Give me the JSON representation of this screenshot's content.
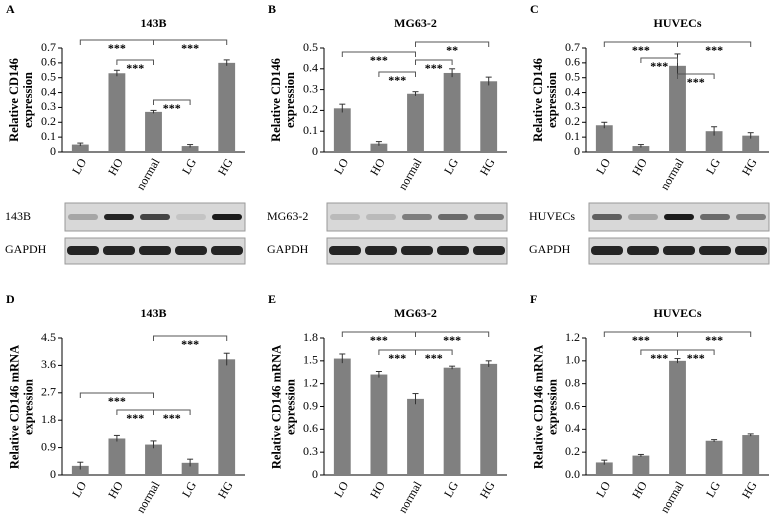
{
  "chart_data": [
    {
      "type": "bar",
      "panel": "A",
      "title": "143B",
      "ylabel": "Relative CD146 expression",
      "categories": [
        "LO",
        "HO",
        "normal",
        "LG",
        "HG"
      ],
      "values": [
        0.05,
        0.53,
        0.27,
        0.04,
        0.6
      ],
      "errors": [
        0.01,
        0.02,
        0.01,
        0.01,
        0.02
      ],
      "color": "#808080",
      "ylim": [
        0,
        0.7
      ],
      "yticks": [
        0,
        0.1,
        0.2,
        0.3,
        0.4,
        0.5,
        0.6,
        0.7
      ],
      "annotations": [
        "***",
        "***",
        "***",
        "***"
      ]
    },
    {
      "type": "bar",
      "panel": "B",
      "title": "MG63-2",
      "ylabel": "Relative CD146 expression",
      "categories": [
        "LO",
        "HO",
        "normal",
        "LG",
        "HG"
      ],
      "values": [
        0.21,
        0.04,
        0.28,
        0.38,
        0.34
      ],
      "errors": [
        0.02,
        0.01,
        0.01,
        0.02,
        0.02
      ],
      "color": "#808080",
      "ylim": [
        0,
        0.5
      ],
      "yticks": [
        0,
        0.1,
        0.2,
        0.3,
        0.4,
        0.5
      ],
      "annotations": [
        "***",
        "**",
        "***",
        "***"
      ]
    },
    {
      "type": "bar",
      "panel": "C",
      "title": "HUVECs",
      "ylabel": "Relative CD146 expression",
      "categories": [
        "LO",
        "HO",
        "normal",
        "LG",
        "HG"
      ],
      "values": [
        0.18,
        0.04,
        0.58,
        0.14,
        0.11
      ],
      "errors": [
        0.02,
        0.01,
        0.08,
        0.03,
        0.02
      ],
      "color": "#808080",
      "ylim": [
        0,
        0.7
      ],
      "yticks": [
        0,
        0.1,
        0.2,
        0.3,
        0.4,
        0.5,
        0.6,
        0.7
      ],
      "annotations": [
        "***",
        "***",
        "***",
        "***"
      ]
    },
    {
      "type": "bar",
      "panel": "D",
      "title": "143B",
      "ylabel": "Relative CD146 mRNA expression",
      "categories": [
        "LO",
        "HO",
        "normal",
        "LG",
        "HG"
      ],
      "values": [
        0.3,
        1.2,
        1.0,
        0.4,
        3.8
      ],
      "errors": [
        0.12,
        0.1,
        0.12,
        0.12,
        0.2
      ],
      "color": "#808080",
      "ylim": [
        0,
        4.5
      ],
      "yticks": [
        0,
        0.9,
        1.8,
        2.7,
        3.6,
        4.5
      ],
      "annotations": [
        "***",
        "***",
        "***",
        "***"
      ]
    },
    {
      "type": "bar",
      "panel": "E",
      "title": "MG63-2",
      "ylabel": "Relative CD146 mRNA expression",
      "categories": [
        "LO",
        "HO",
        "normal",
        "LG",
        "HG"
      ],
      "values": [
        1.53,
        1.32,
        1.0,
        1.41,
        1.46
      ],
      "errors": [
        0.06,
        0.04,
        0.07,
        0.02,
        0.04
      ],
      "color": "#808080",
      "ylim": [
        0,
        1.8
      ],
      "yticks": [
        0,
        0.3,
        0.6,
        0.9,
        1.2,
        1.5,
        1.8
      ],
      "annotations": [
        "***",
        "***",
        "***",
        "***"
      ]
    },
    {
      "type": "bar",
      "panel": "F",
      "title": "HUVECs",
      "ylabel": "Relative CD146 mRNA expression",
      "categories": [
        "LO",
        "HO",
        "normal",
        "LG",
        "HG"
      ],
      "values": [
        0.11,
        0.17,
        1.0,
        0.3,
        0.35
      ],
      "errors": [
        0.02,
        0.01,
        0.02,
        0.01,
        0.01
      ],
      "color": "#808080",
      "ylim": [
        0,
        1.2
      ],
      "yticks": [
        {
          "value": 0,
          "label": "0.0"
        },
        0.2,
        0.4,
        0.6,
        0.8,
        {
          "value": 1,
          "label": "1.0"
        },
        1.2
      ],
      "annotations": [
        "***",
        "***",
        "***",
        "***"
      ]
    }
  ],
  "blots": [
    {
      "label": "143B",
      "loading": "GAPDH"
    },
    {
      "label": "MG63-2",
      "loading": "GAPDH"
    },
    {
      "label": "HUVECs",
      "loading": "GAPDH"
    }
  ]
}
